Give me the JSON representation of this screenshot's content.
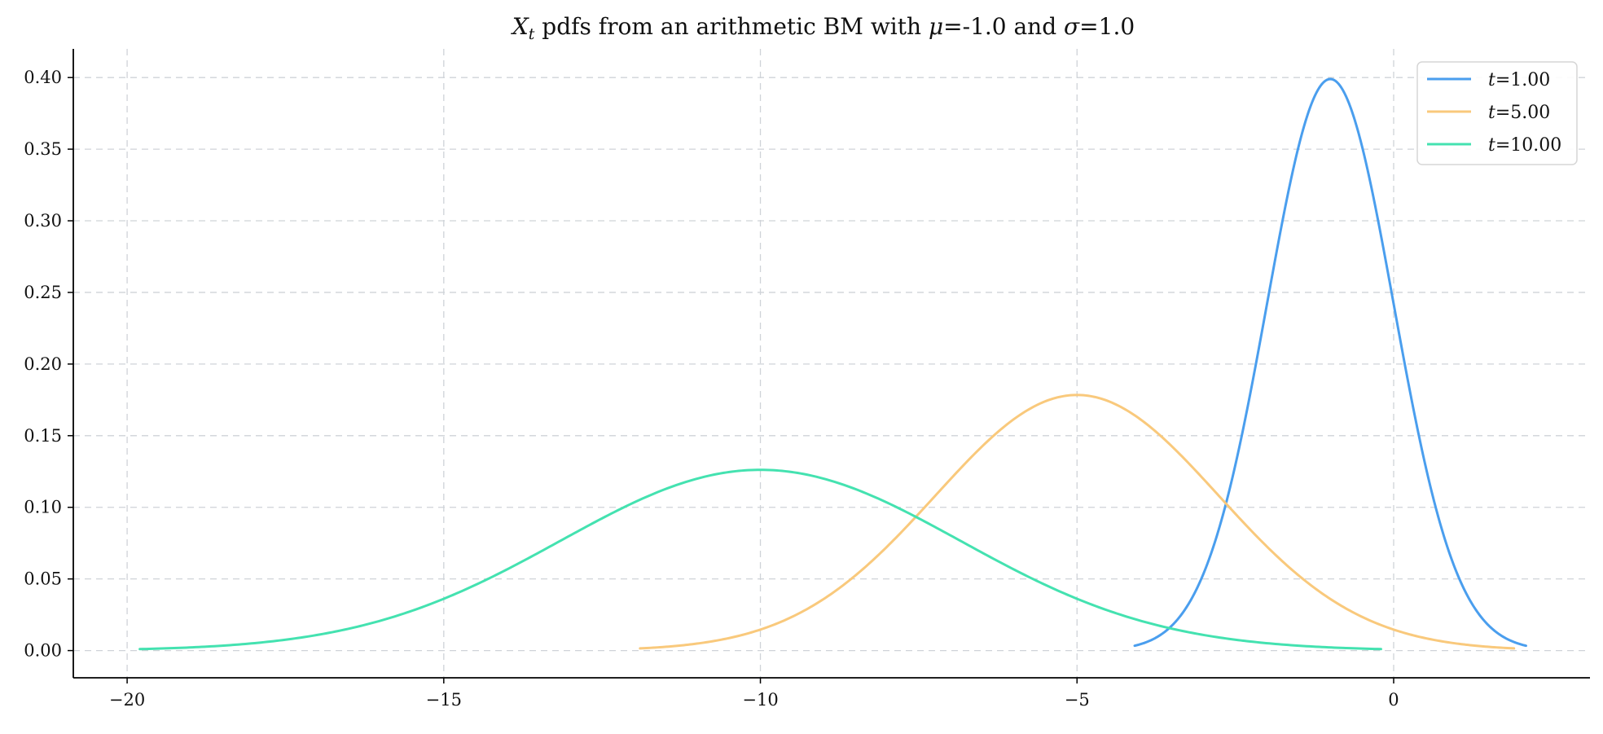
{
  "chart_data": {
    "type": "line",
    "title": "X_t pdfs from an arithmetic BM with μ=-1.0 and σ=1.0",
    "title_parts": {
      "var": "X",
      "var_sub": "t",
      "text1": " pdfs from an arithmetic BM with ",
      "mu": "μ",
      "text2": "=-1.0 and ",
      "sigma": "σ",
      "text3": "=1.0"
    },
    "xlabel": "",
    "ylabel": "",
    "xlim": [
      -20.85,
      3.1
    ],
    "ylim": [
      -0.019,
      0.42
    ],
    "grid": true,
    "legend_position": "top-right",
    "mu": -1.0,
    "sigma": 1.0,
    "x_ticks": [
      -20,
      -15,
      -10,
      -5,
      0
    ],
    "x_tick_labels": [
      "−20",
      "−15",
      "−10",
      "−5",
      "0"
    ],
    "y_ticks": [
      0.0,
      0.05,
      0.1,
      0.15,
      0.2,
      0.25,
      0.3,
      0.35,
      0.4
    ],
    "y_tick_labels": [
      "0.00",
      "0.05",
      "0.10",
      "0.15",
      "0.20",
      "0.25",
      "0.30",
      "0.35",
      "0.40"
    ],
    "series": [
      {
        "name": "t=1.00",
        "t_label": "t",
        "value_label": "=1.00",
        "t": 1.0,
        "color": "#4a9eee",
        "x_range": [
          -4.09,
          2.09
        ],
        "peak_x": -1.0,
        "peak_y": 0.399
      },
      {
        "name": "t=5.00",
        "t_label": "t",
        "value_label": "=5.00",
        "t": 5.0,
        "color": "#f9c97c",
        "x_range": [
          -11.9,
          1.9
        ],
        "peak_x": -5.0,
        "peak_y": 0.178
      },
      {
        "name": "t=10.00",
        "t_label": "t",
        "value_label": "=10.00",
        "t": 10.0,
        "color": "#44e2b0",
        "x_range": [
          -19.8,
          -0.2
        ],
        "peak_x": -10.0,
        "peak_y": 0.126
      }
    ]
  }
}
